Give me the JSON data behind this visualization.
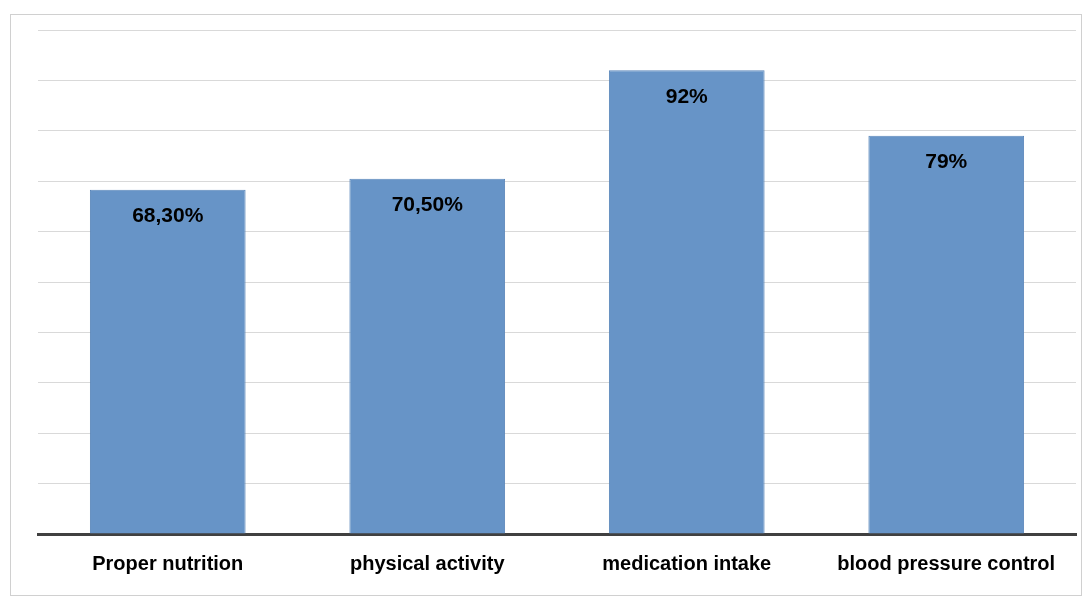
{
  "chart_data": {
    "type": "bar",
    "categories": [
      "Proper nutrition",
      "physical activity",
      "medication intake",
      "blood pressure control"
    ],
    "values": [
      68.3,
      70.5,
      92,
      79
    ],
    "color": "#6794c7",
    "value_labels": [
      "68,30%",
      "70,50%",
      "92%",
      "79%"
    ],
    "ylim": [
      0,
      100
    ],
    "yticks": [
      {
        "value": 0,
        "label": null
      },
      {
        "value": 10,
        "label": null
      },
      {
        "value": 20,
        "label": null
      },
      {
        "value": 30,
        "label": null
      },
      {
        "value": 40,
        "label": null
      },
      {
        "value": 50,
        "label": null
      },
      {
        "value": 60,
        "label": null
      },
      {
        "value": 70,
        "label": null
      },
      {
        "value": 80,
        "label": null
      },
      {
        "value": 90,
        "label": null
      },
      {
        "value": 100,
        "label": null
      }
    ],
    "grid": "y",
    "tick_labels": "x",
    "legend": false
  }
}
